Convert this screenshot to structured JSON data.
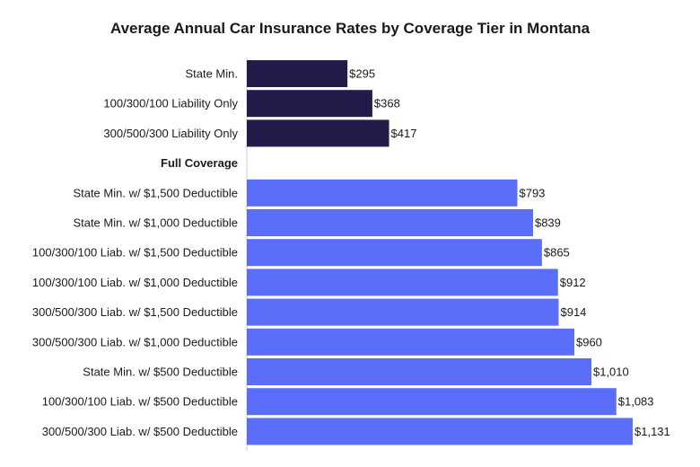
{
  "chart_data": {
    "type": "bar",
    "orientation": "horizontal",
    "title": "Average Annual Car Insurance Rates by Coverage Tier in Montana",
    "xlabel": "",
    "ylabel": "",
    "grid": false,
    "colors": {
      "liability": "#221c4a",
      "full": "#5a6efa"
    },
    "rows": [
      {
        "label": "State Min.",
        "value": 295,
        "value_label": "$295",
        "group": "liability"
      },
      {
        "label": "100/300/100 Liability Only",
        "value": 368,
        "value_label": "$368",
        "group": "liability"
      },
      {
        "label": "300/500/300 Liability Only",
        "value": 417,
        "value_label": "$417",
        "group": "liability"
      },
      {
        "label": "Full Coverage",
        "is_header": true
      },
      {
        "label": "State Min. w/ $1,500 Deductible",
        "value": 793,
        "value_label": "$793",
        "group": "full"
      },
      {
        "label": "State Min. w/ $1,000 Deductible",
        "value": 839,
        "value_label": "$839",
        "group": "full"
      },
      {
        "label": "100/300/100 Liab. w/ $1,500 Deductible",
        "value": 865,
        "value_label": "$865",
        "group": "full"
      },
      {
        "label": "100/300/100 Liab. w/ $1,000 Deductible",
        "value": 912,
        "value_label": "$912",
        "group": "full"
      },
      {
        "label": "300/500/300 Liab. w/ $1,500 Deductible",
        "value": 914,
        "value_label": "$914",
        "group": "full"
      },
      {
        "label": "300/500/300 Liab. w/ $1,000 Deductible",
        "value": 960,
        "value_label": "$960",
        "group": "full"
      },
      {
        "label": "State Min. w/ $500 Deductible",
        "value": 1010,
        "value_label": "$1,010",
        "group": "full"
      },
      {
        "label": "100/300/100 Liab. w/ $500 Deductible",
        "value": 1083,
        "value_label": "$1,083",
        "group": "full"
      },
      {
        "label": "300/500/300 Liab. w/ $500 Deductible",
        "value": 1131,
        "value_label": "$1,131",
        "group": "full"
      }
    ],
    "xlim": [
      0,
      1131
    ]
  }
}
